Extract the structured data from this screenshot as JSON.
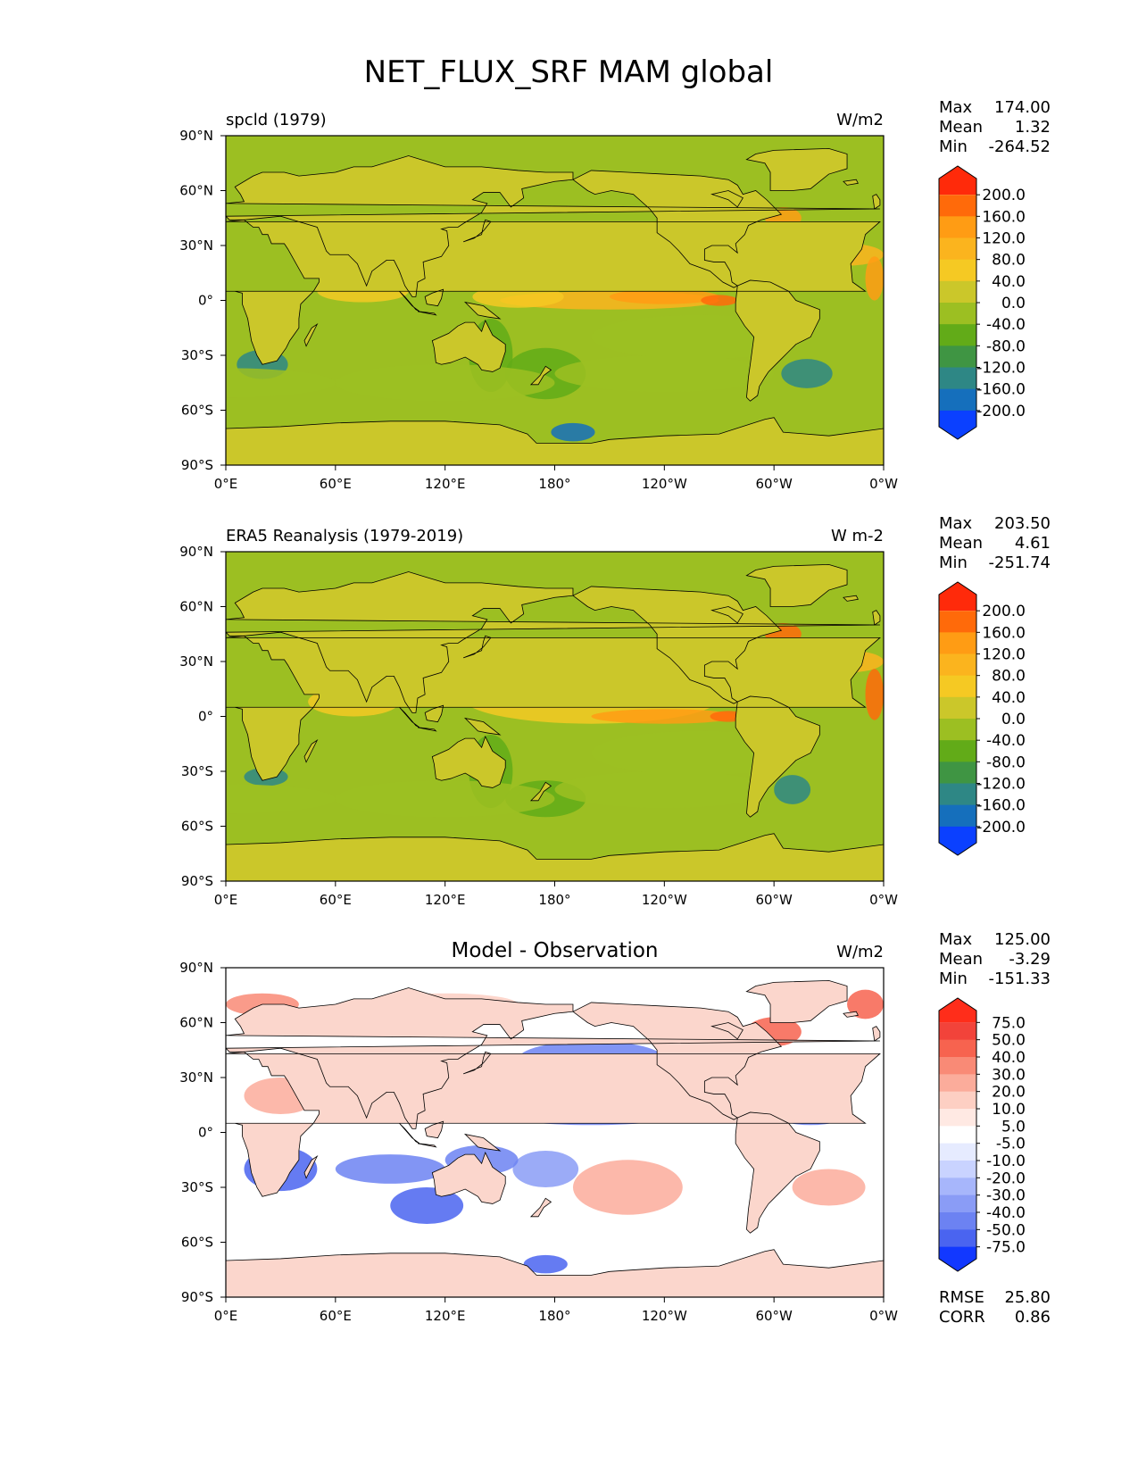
{
  "figure_title": "NET_FLUX_SRF MAM global",
  "axes": {
    "lat_ticks": [
      "90°N",
      "60°N",
      "30°N",
      "0°",
      "30°S",
      "60°S",
      "90°S"
    ],
    "lon_ticks": [
      "0°E",
      "60°E",
      "120°E",
      "180°",
      "120°W",
      "60°W",
      "0°W"
    ]
  },
  "stat_labels": {
    "max": "Max",
    "mean": "Mean",
    "min": "Min",
    "rmse": "RMSE",
    "corr": "CORR"
  },
  "chart_data": [
    {
      "type": "heatmap",
      "title": "spcld (1979)",
      "units": "W/m2",
      "stats": {
        "max": "174.00",
        "mean": "1.32",
        "min": "-264.52"
      },
      "colorbar": {
        "levels": [
          "200.0",
          "160.0",
          "120.0",
          "80.0",
          "40.0",
          "0.0",
          "-40.0",
          "-80.0",
          "-120.0",
          "-160.0",
          "-200.0"
        ],
        "colors": [
          "#ff2a0a",
          "#ff6a0a",
          "#ff9c14",
          "#fbb41e",
          "#f5c923",
          "#cbc72a",
          "#9cbf22",
          "#62ab18",
          "#3f9543",
          "#2e8785",
          "#156fbc",
          "#0b40ff"
        ]
      },
      "xlim": [
        0,
        360
      ],
      "ylim": [
        -90,
        90
      ]
    },
    {
      "type": "heatmap",
      "title": "ERA5 Reanalysis (1979-2019)",
      "units": "W m-2",
      "stats": {
        "max": "203.50",
        "mean": "4.61",
        "min": "-251.74"
      },
      "colorbar": {
        "levels": [
          "200.0",
          "160.0",
          "120.0",
          "80.0",
          "40.0",
          "0.0",
          "-40.0",
          "-80.0",
          "-120.0",
          "-160.0",
          "-200.0"
        ],
        "colors": [
          "#ff2a0a",
          "#ff6a0a",
          "#ff9c14",
          "#fbb41e",
          "#f5c923",
          "#cbc72a",
          "#9cbf22",
          "#62ab18",
          "#3f9543",
          "#2e8785",
          "#156fbc",
          "#0b40ff"
        ]
      },
      "xlim": [
        0,
        360
      ],
      "ylim": [
        -90,
        90
      ]
    },
    {
      "type": "heatmap",
      "title": "Model - Observation",
      "units": "W/m2",
      "stats": {
        "max": "125.00",
        "mean": "-3.29",
        "min": "-151.33"
      },
      "extra_stats": {
        "rmse": "25.80",
        "corr": "0.86"
      },
      "colorbar": {
        "levels": [
          "75.0",
          "50.0",
          "40.0",
          "30.0",
          "20.0",
          "10.0",
          "5.0",
          "-5.0",
          "-10.0",
          "-20.0",
          "-30.0",
          "-40.0",
          "-50.0",
          "-75.0"
        ],
        "colors": [
          "#ff2d1a",
          "#f2433a",
          "#f7634f",
          "#f98a76",
          "#fbac9b",
          "#fdcfc3",
          "#ffe9e3",
          "#ffffff",
          "#e6ebff",
          "#c9d3ff",
          "#a7b6fb",
          "#8a9cf6",
          "#6c82f2",
          "#4a64f0",
          "#1238ff"
        ]
      },
      "xlim": [
        0,
        360
      ],
      "ylim": [
        -90,
        90
      ]
    }
  ]
}
